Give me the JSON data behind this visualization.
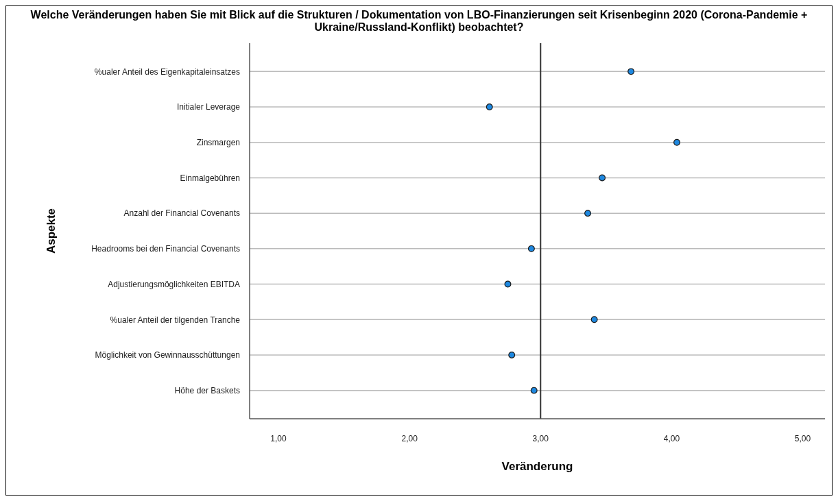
{
  "chart_data": {
    "type": "scatter",
    "title": "Welche Veränderungen haben Sie mit Blick auf die Strukturen / Dokumentation von LBO-Finanzierungen seit Krisenbeginn 2020 (Corona-Pandemie + Ukraine/Russland-Konflikt) beobachtet?",
    "xlabel": "Veränderung",
    "ylabel": "Aspekte",
    "orientation": "horizontal",
    "categories": [
      "%ualer Anteil des Eigenkapitaleinsatzes",
      "Initialer Leverage",
      "Zinsmargen",
      "Einmalgebühren",
      "Anzahl der Financial Covenants",
      "Headrooms bei den Financial Covenants",
      "Adjustierungsmöglichkeiten EBITDA",
      "%ualer Anteil der tilgenden Tranche",
      "Möglichkeit von Gewinnausschüttungen",
      "Höhe der Baskets"
    ],
    "series": [
      {
        "color": "#1e88e0",
        "values": [
          3.69,
          2.61,
          4.04,
          3.47,
          3.36,
          2.93,
          2.75,
          3.41,
          2.78,
          2.95
        ]
      }
    ],
    "xlim": [
      0.78,
      5.17
    ],
    "xticks": [
      {
        "value": 1,
        "label": "1,00"
      },
      {
        "value": 2,
        "label": "2,00"
      },
      {
        "value": 3,
        "label": "3,00"
      },
      {
        "value": 4,
        "label": "4,00"
      },
      {
        "value": 5,
        "label": "5,00"
      }
    ],
    "ref_lines": [
      {
        "axis": "x",
        "value": 3,
        "color": "#333333"
      }
    ],
    "grid": "y",
    "marker": "circle",
    "legend": false
  }
}
